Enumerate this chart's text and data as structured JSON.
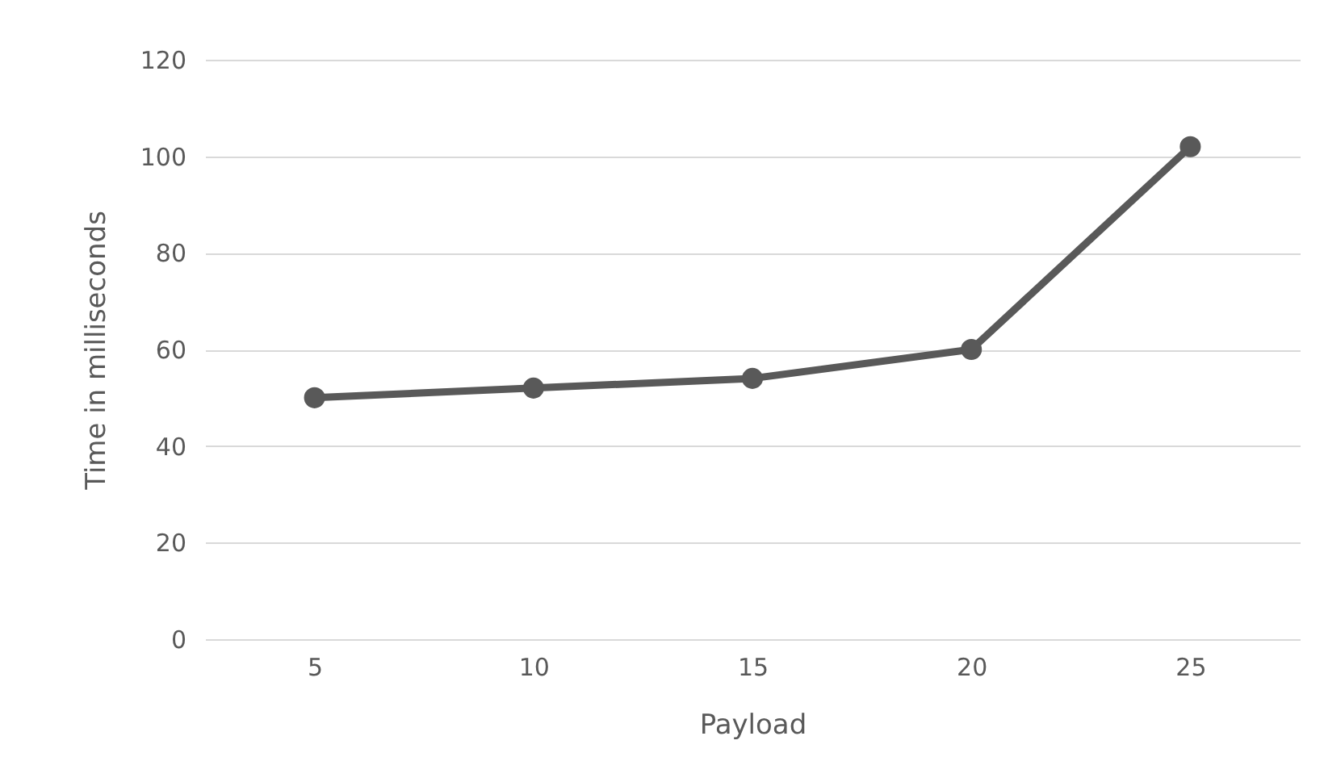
{
  "chart_data": {
    "type": "line",
    "xlabel": "Payload",
    "ylabel": "Time in milliseconds",
    "categories": [
      "5",
      "10",
      "15",
      "20",
      "25"
    ],
    "series": [
      {
        "color": "#595959",
        "values": [
          50,
          52,
          54,
          60,
          102
        ]
      }
    ],
    "ylim": [
      0,
      120
    ],
    "yticks": [
      0,
      20,
      40,
      60,
      80,
      100,
      120
    ],
    "grid": "y",
    "marker": "circle",
    "line_style": "solid"
  }
}
